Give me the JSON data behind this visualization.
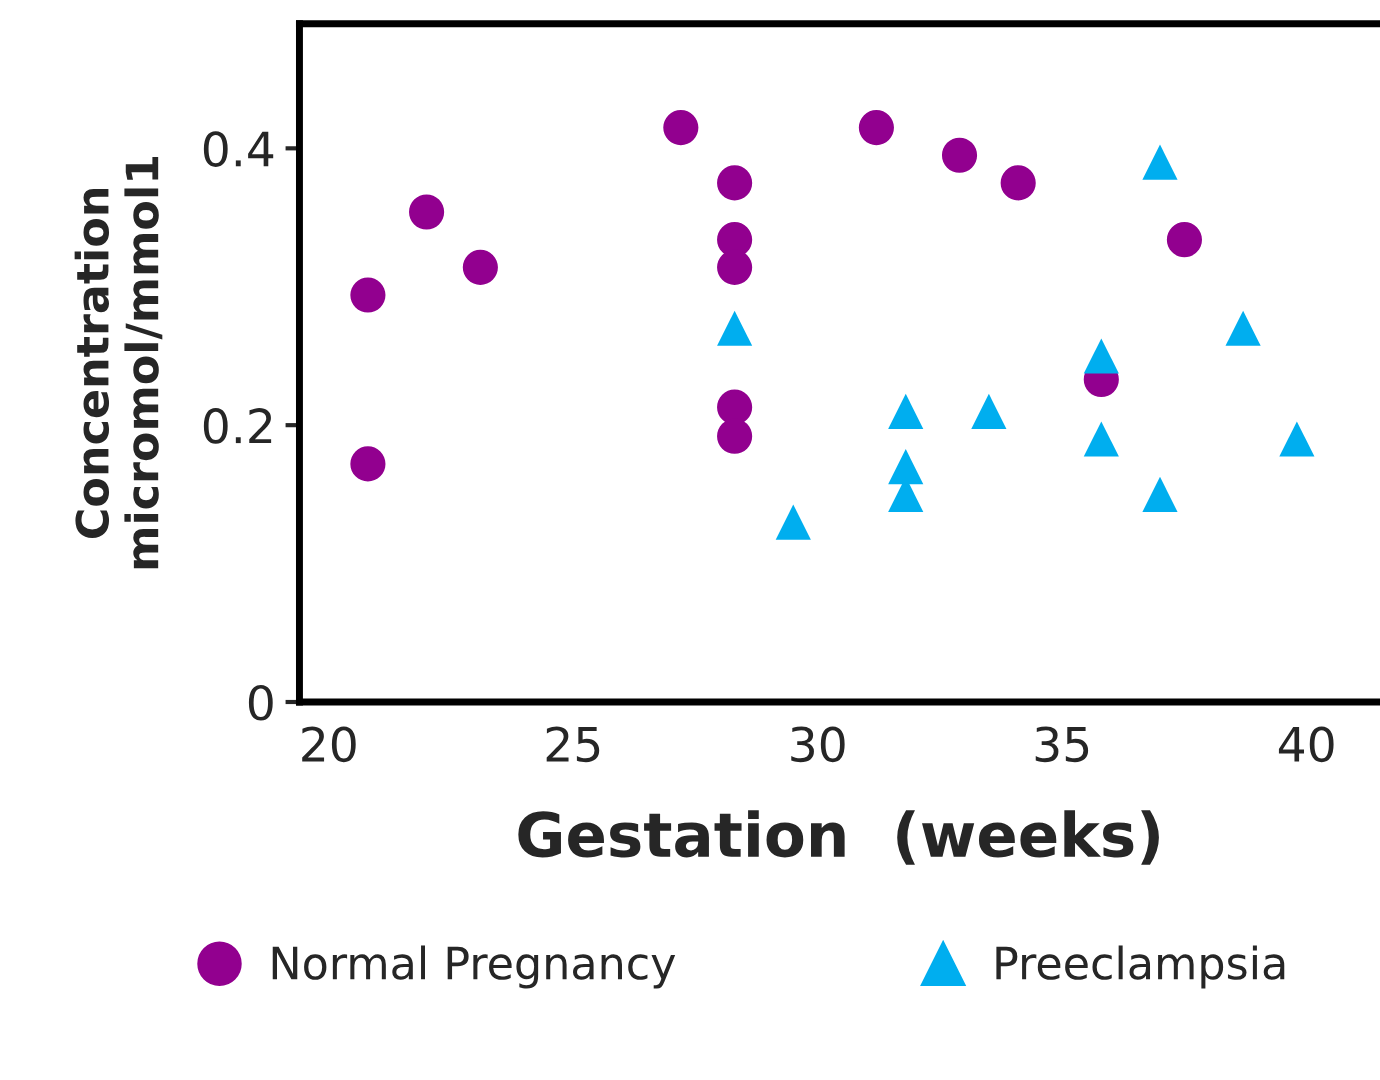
{
  "chart_data": {
    "type": "scatter",
    "xlabel": "Gestation  (weeks)",
    "ylabel": "Concentration\nmicromol/mmol1",
    "xlim": [
      19.4,
      41.5
    ],
    "ylim": [
      0,
      0.49
    ],
    "xticks": [
      20,
      25,
      30,
      35,
      40
    ],
    "yticks": [
      0,
      0.2,
      0.4
    ],
    "grid": false,
    "legend": "bottom",
    "series": [
      {
        "name": "Normal Pregnancy",
        "color": "#92008f",
        "marker": "circle",
        "x": [
          20.8,
          22,
          23.1,
          20.8,
          27.2,
          28.3,
          28.3,
          28.3,
          28.3,
          28.3,
          31.2,
          32.9,
          34.1,
          37.5,
          35.8
        ],
        "values": [
          0.294,
          0.354,
          0.314,
          0.172,
          0.415,
          0.375,
          0.334,
          0.314,
          0.213,
          0.192,
          0.415,
          0.395,
          0.375,
          0.334,
          0.233
        ]
      },
      {
        "name": "Preeclampsia",
        "color": "#00aeef",
        "marker": "triangle",
        "x": [
          28.3,
          29.5,
          31.8,
          31.8,
          31.8,
          33.5,
          35.8,
          35.8,
          37,
          37,
          38.7,
          39.8
        ],
        "values": [
          0.27,
          0.13,
          0.21,
          0.17,
          0.15,
          0.21,
          0.25,
          0.19,
          0.39,
          0.15,
          0.27,
          0.19
        ]
      }
    ]
  }
}
